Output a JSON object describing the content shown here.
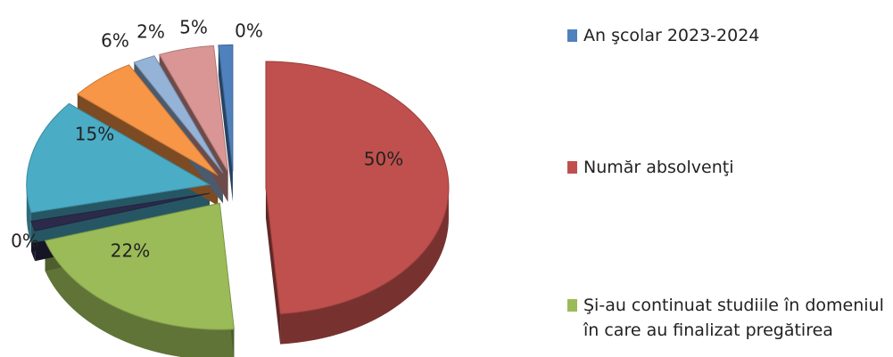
{
  "chart_data": {
    "type": "pie",
    "title": "",
    "slices": [
      {
        "label": "Număr absolvenţi",
        "value": 50,
        "text": "50%",
        "color": "#c0504d"
      },
      {
        "label": "Şi-au continuat studiile în domeniul în care au finalizat pregătirea",
        "value": 22,
        "text": "22%",
        "color": "#9bbb59"
      },
      {
        "label": "",
        "value": 0,
        "text": "0%",
        "color": "#2c2a4a"
      },
      {
        "label": "",
        "value": 15,
        "text": "15%",
        "color": "#4bacc6"
      },
      {
        "label": "",
        "value": 6,
        "text": "6%",
        "color": "#f79646"
      },
      {
        "label": "",
        "value": 2,
        "text": "2%",
        "color": "#95b3d7"
      },
      {
        "label": "",
        "value": 5,
        "text": "5%",
        "color": "#d99694"
      },
      {
        "label": "An şcolar 2023-2024",
        "value": 0,
        "text": "0%",
        "color": "#4f81bd"
      }
    ],
    "legend": {
      "position": "right",
      "items": [
        {
          "label": "An şcolar 2023-2024",
          "color": "#4f81bd"
        },
        {
          "label": "Număr absolvenţi",
          "color": "#c0504d"
        },
        {
          "label": "Şi-au continuat studiile în domeniul\nîn care au finalizat pregătirea",
          "color": "#9bbb59"
        }
      ]
    }
  }
}
